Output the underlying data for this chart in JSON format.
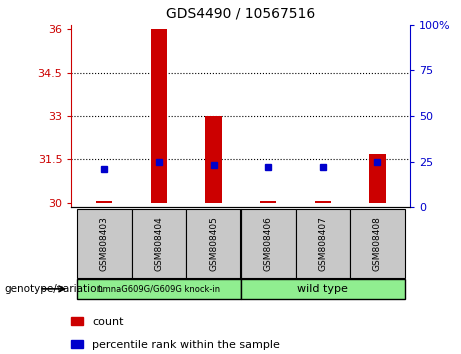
{
  "title": "GDS4490 / 10567516",
  "samples": [
    "GSM808403",
    "GSM808404",
    "GSM808405",
    "GSM808406",
    "GSM808407",
    "GSM808408"
  ],
  "count_values": [
    30.05,
    36.0,
    33.0,
    30.05,
    30.05,
    31.7
  ],
  "count_base": 30.0,
  "percentile_values": [
    31.18,
    31.42,
    31.32,
    31.25,
    31.22,
    31.42
  ],
  "ylim_left": [
    29.85,
    36.15
  ],
  "ylim_right": [
    0,
    100
  ],
  "left_ticks": [
    30,
    31.5,
    33,
    34.5,
    36
  ],
  "right_ticks": [
    0,
    25,
    50,
    75,
    100
  ],
  "left_tick_labels": [
    "30",
    "31.5",
    "33",
    "34.5",
    "36"
  ],
  "right_tick_labels": [
    "0",
    "25",
    "50",
    "75",
    "100%"
  ],
  "hlines": [
    31.5,
    33,
    34.5
  ],
  "group1_label": "LmnaG609G/G609G knock-in",
  "group2_label": "wild type",
  "group_color": "#90EE90",
  "bar_color": "#CC0000",
  "dot_color": "#0000CC",
  "axis_color_left": "#CC0000",
  "axis_color_right": "#0000CC",
  "background_plot": "#FFFFFF",
  "background_label": "#C8C8C8",
  "legend_count_label": "count",
  "legend_percentile_label": "percentile rank within the sample",
  "genotype_label": "genotype/variation",
  "bar_width": 0.3
}
